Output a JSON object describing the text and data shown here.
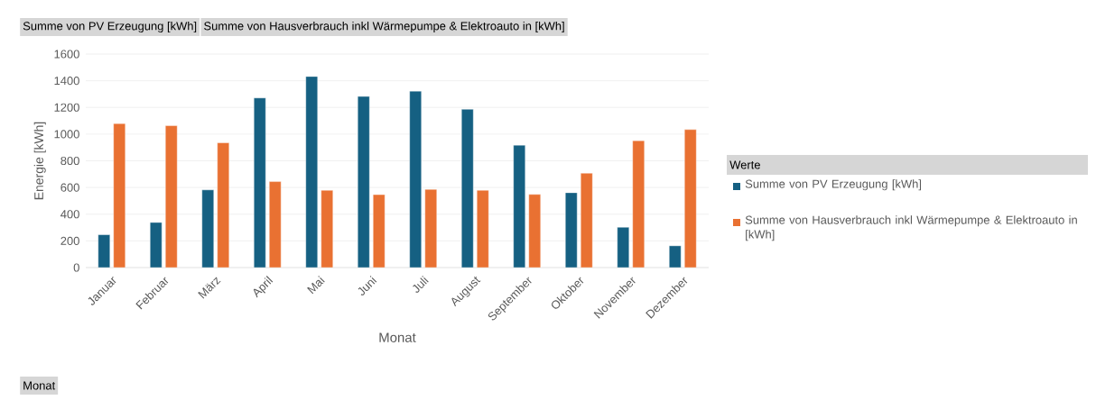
{
  "chart_data": {
    "type": "bar",
    "xlabel": "Monat",
    "ylabel": "Energie [kWh]",
    "legend_title": "Werte",
    "categories": [
      "Januar",
      "Februar",
      "März",
      "April",
      "Mai",
      "Juni",
      "Juli",
      "August",
      "September",
      "Oktober",
      "November",
      "Dezember"
    ],
    "series": [
      {
        "name": "Summe von PV Erzeugung [kWh]",
        "color": "#156082",
        "values": [
          246,
          338,
          582,
          1271,
          1432,
          1282,
          1322,
          1186,
          917,
          561,
          302,
          163
        ]
      },
      {
        "name": "Summe von Hausverbrauch inkl Wärmepumpe & Elektroauto in [kWh]",
        "color": "#e97132",
        "values": [
          1079,
          1063,
          935,
          644,
          579,
          546,
          586,
          579,
          548,
          707,
          951,
          1034
        ]
      }
    ],
    "ylim": [
      0,
      1600
    ],
    "yticks": [
      0,
      200,
      400,
      600,
      800,
      1000,
      1200,
      1400,
      1600
    ],
    "grid": "y",
    "legend": "right",
    "annotations": [
      "Summe von PV Erzeugung [kWh]",
      "Summe von Hausverbrauch inkl Wärmepumpe & Elektroauto in [kWh]",
      "Monat"
    ]
  }
}
